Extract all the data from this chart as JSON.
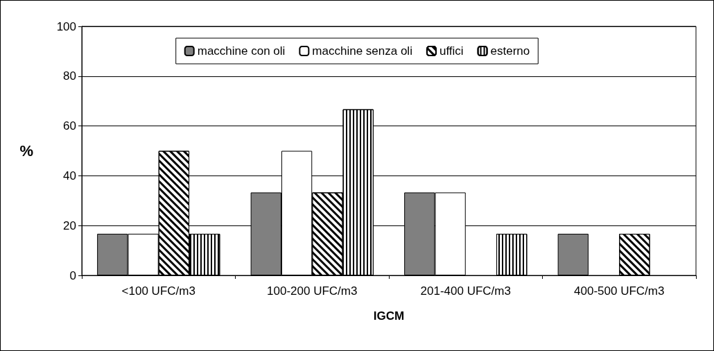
{
  "chart_data": {
    "type": "bar",
    "xlabel": "IGCM",
    "ylabel": "%",
    "categories": [
      "<100 UFC/m3",
      "100-200 UFC/m3",
      "201-400 UFC/m3",
      "400-500 UFC/m3"
    ],
    "series": [
      {
        "name": "macchine con oli",
        "color": "#808080",
        "values": [
          16.7,
          33.3,
          33.3,
          16.7
        ]
      },
      {
        "name": "macchine senza oli",
        "color": "#ffffff",
        "values": [
          16.7,
          50,
          33.3,
          null
        ]
      },
      {
        "name": "uffici",
        "color": "#000000",
        "values": [
          50,
          33.3,
          null,
          16.7
        ]
      },
      {
        "name": "esterno",
        "color": "#000000",
        "values": [
          16.7,
          66.7,
          16.7,
          null
        ]
      }
    ],
    "ylim": [
      0,
      100
    ],
    "yticks": [
      0,
      20,
      40,
      60,
      80,
      100
    ],
    "grid": "y",
    "legend": "top"
  }
}
